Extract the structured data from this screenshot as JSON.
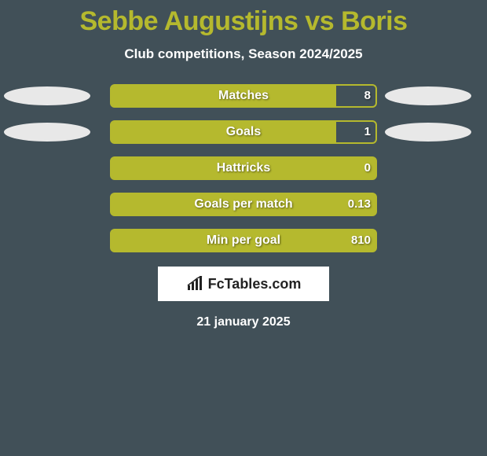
{
  "title": "Sebbe Augustijns vs Boris",
  "subtitle": "Club competitions, Season 2024/2025",
  "title_color": "#b5b92e",
  "title_fontsize": 34,
  "subtitle_color": "#ffffff",
  "subtitle_fontsize": 17,
  "background_color": "#415058",
  "bar_border_color": "#b5b92e",
  "bar_fill_color": "#b5b92e",
  "ellipse_color": "#e8e8e8",
  "rows": [
    {
      "label": "Matches",
      "value_left": "",
      "value_right": "8",
      "fill_pct": 85,
      "left_ellipse": true,
      "right_ellipse": true
    },
    {
      "label": "Goals",
      "value_left": "",
      "value_right": "1",
      "fill_pct": 85,
      "left_ellipse": true,
      "right_ellipse": true
    },
    {
      "label": "Hattricks",
      "value_left": "",
      "value_right": "0",
      "fill_pct": 100,
      "left_ellipse": false,
      "right_ellipse": false
    },
    {
      "label": "Goals per match",
      "value_left": "",
      "value_right": "0.13",
      "fill_pct": 100,
      "left_ellipse": false,
      "right_ellipse": false
    },
    {
      "label": "Min per goal",
      "value_left": "",
      "value_right": "810",
      "fill_pct": 100,
      "left_ellipse": false,
      "right_ellipse": false
    }
  ],
  "logo_text": "FcTables.com",
  "date": "21 january 2025",
  "date_color": "#ffffff"
}
